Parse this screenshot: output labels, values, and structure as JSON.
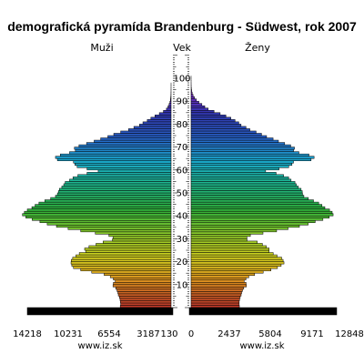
{
  "chart_data": {
    "type": "population-pyramid",
    "title": "demografická pyramída Brandenburg - Südwest, rok 2007",
    "left_label": "Muži",
    "center_label": "Vek",
    "right_label": "Ženy",
    "source_left": "www.iz.sk",
    "source_right": "www.iz.sk",
    "left_ticks": [
      "14218",
      "10231",
      "6554",
      "3187",
      "130"
    ],
    "right_ticks": [
      "0",
      "2437",
      "5804",
      "9171",
      "12848"
    ],
    "age_ticks": [
      10,
      20,
      30,
      40,
      50,
      60,
      70,
      80,
      90,
      100
    ],
    "ages": [
      0,
      1,
      2,
      3,
      4,
      5,
      6,
      7,
      8,
      9,
      10,
      11,
      12,
      13,
      14,
      15,
      16,
      17,
      18,
      19,
      20,
      21,
      22,
      23,
      24,
      25,
      26,
      27,
      28,
      29,
      30,
      31,
      32,
      33,
      34,
      35,
      36,
      37,
      38,
      39,
      40,
      41,
      42,
      43,
      44,
      45,
      46,
      47,
      48,
      49,
      50,
      51,
      52,
      53,
      54,
      55,
      56,
      57,
      58,
      59,
      60,
      61,
      62,
      63,
      64,
      65,
      66,
      67,
      68,
      69,
      70,
      71,
      72,
      73,
      74,
      75,
      76,
      77,
      78,
      79,
      80,
      81,
      82,
      83,
      84,
      85,
      86,
      87,
      88,
      89,
      90,
      91,
      92,
      93,
      94,
      95,
      96,
      97,
      98,
      99,
      100
    ],
    "male": [
      5230,
      5190,
      5220,
      5250,
      5320,
      5430,
      5480,
      5570,
      5700,
      5980,
      5940,
      5750,
      5940,
      6260,
      6890,
      8170,
      9300,
      10050,
      10220,
      10300,
      10280,
      10130,
      9800,
      9450,
      8790,
      8900,
      8450,
      7730,
      7000,
      6040,
      5980,
      6400,
      7800,
      9300,
      10600,
      11800,
      12750,
      13500,
      14300,
      14950,
      15300,
      15100,
      14800,
      14330,
      14000,
      13600,
      13000,
      12400,
      11900,
      11700,
      11600,
      11500,
      11250,
      11050,
      10900,
      10450,
      10100,
      9600,
      8650,
      7500,
      8650,
      9670,
      9900,
      10050,
      11700,
      11900,
      11400,
      10450,
      9850,
      9950,
      9480,
      8700,
      7920,
      7250,
      6510,
      5900,
      5190,
      4380,
      3830,
      3250,
      2900,
      2450,
      2080,
      1660,
      1210,
      790,
      480,
      320,
      210,
      120,
      70,
      40,
      20,
      10,
      5,
      3,
      1,
      1,
      0,
      0,
      0
    ],
    "female": [
      4970,
      4950,
      4950,
      4990,
      5050,
      5150,
      5200,
      5290,
      5420,
      5690,
      5660,
      5460,
      5640,
      5940,
      6540,
      7420,
      8220,
      8890,
      9270,
      9560,
      9470,
      9320,
      8850,
      8450,
      8030,
      8030,
      7740,
      7340,
      6810,
      5760,
      5740,
      6100,
      7400,
      8800,
      9980,
      11150,
      12050,
      12770,
      13570,
      14220,
      14620,
      14520,
      14250,
      13770,
      13470,
      13130,
      12600,
      12070,
      11610,
      11470,
      11440,
      11320,
      11040,
      10830,
      10690,
      10290,
      10040,
      9520,
      8750,
      7670,
      9050,
      10050,
      10380,
      10540,
      12350,
      12660,
      12130,
      11100,
      10550,
      10640,
      10250,
      9630,
      8990,
      8440,
      7770,
      7250,
      6690,
      6050,
      5650,
      5140,
      4910,
      4520,
      4090,
      3580,
      2990,
      2360,
      1760,
      1410,
      1110,
      800,
      540,
      340,
      200,
      110,
      60,
      30,
      10,
      5,
      2,
      1,
      1
    ],
    "colors_bottom_to_top": [
      "#c0392b",
      "#d98a1f",
      "#d6d11f",
      "#8ac92a",
      "#2fae3a",
      "#1fb98a",
      "#1aa6c9",
      "#2860c8",
      "#3236b0",
      "#8a2bc4"
    ]
  }
}
